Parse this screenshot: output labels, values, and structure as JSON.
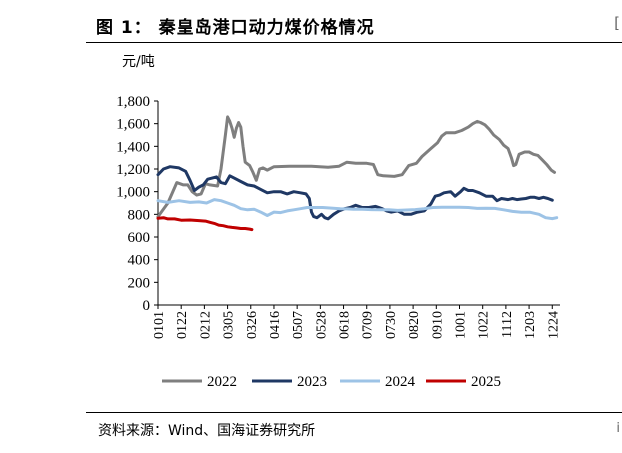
{
  "figure": {
    "title": "图 1：  秦皇岛港口动力煤价格情况",
    "source": "资料来源：Wind、国海证券研究所",
    "edge_mark_top": "[",
    "edge_mark_bottom": "i"
  },
  "chart_data": {
    "type": "line",
    "title": "秦皇岛港口动力煤价格情况",
    "ylabel": "元/吨",
    "xlabel": "",
    "ylim": [
      0,
      1800
    ],
    "yticks": [
      0,
      200,
      400,
      600,
      800,
      1000,
      1200,
      1400,
      1600,
      1800
    ],
    "ytick_labels": [
      "0",
      "200",
      "400",
      "600",
      "800",
      "1,000",
      "1,200",
      "1,400",
      "1,600",
      "1,800"
    ],
    "x_domain": [
      1,
      365
    ],
    "x_ticks": [
      {
        "day": 1,
        "label": "0101"
      },
      {
        "day": 22,
        "label": "0122"
      },
      {
        "day": 43,
        "label": "0212"
      },
      {
        "day": 64,
        "label": "0305"
      },
      {
        "day": 85,
        "label": "0326"
      },
      {
        "day": 106,
        "label": "0416"
      },
      {
        "day": 127,
        "label": "0507"
      },
      {
        "day": 148,
        "label": "0528"
      },
      {
        "day": 169,
        "label": "0618"
      },
      {
        "day": 190,
        "label": "0709"
      },
      {
        "day": 211,
        "label": "0730"
      },
      {
        "day": 232,
        "label": "0820"
      },
      {
        "day": 253,
        "label": "0910"
      },
      {
        "day": 274,
        "label": "1001"
      },
      {
        "day": 295,
        "label": "1022"
      },
      {
        "day": 316,
        "label": "1112"
      },
      {
        "day": 337,
        "label": "1203"
      },
      {
        "day": 358,
        "label": "1224"
      }
    ],
    "legend_position": "bottom",
    "series": [
      {
        "name": "2022",
        "color": "#7f7f7f",
        "points": [
          [
            1,
            780
          ],
          [
            10,
            900
          ],
          [
            18,
            1080
          ],
          [
            24,
            1060
          ],
          [
            28,
            1060
          ],
          [
            32,
            1000
          ],
          [
            36,
            970
          ],
          [
            40,
            980
          ],
          [
            44,
            1070
          ],
          [
            48,
            1060
          ],
          [
            55,
            1050
          ],
          [
            58,
            1200
          ],
          [
            60,
            1350
          ],
          [
            62,
            1500
          ],
          [
            64,
            1660
          ],
          [
            66,
            1620
          ],
          [
            68,
            1560
          ],
          [
            70,
            1480
          ],
          [
            72,
            1560
          ],
          [
            74,
            1610
          ],
          [
            76,
            1570
          ],
          [
            78,
            1400
          ],
          [
            80,
            1260
          ],
          [
            84,
            1230
          ],
          [
            87,
            1170
          ],
          [
            90,
            1100
          ],
          [
            93,
            1200
          ],
          [
            96,
            1210
          ],
          [
            100,
            1190
          ],
          [
            106,
            1220
          ],
          [
            120,
            1225
          ],
          [
            140,
            1225
          ],
          [
            155,
            1215
          ],
          [
            165,
            1225
          ],
          [
            172,
            1260
          ],
          [
            180,
            1250
          ],
          [
            190,
            1250
          ],
          [
            196,
            1240
          ],
          [
            200,
            1150
          ],
          [
            205,
            1140
          ],
          [
            215,
            1135
          ],
          [
            222,
            1150
          ],
          [
            228,
            1230
          ],
          [
            235,
            1250
          ],
          [
            240,
            1310
          ],
          [
            248,
            1380
          ],
          [
            254,
            1430
          ],
          [
            258,
            1490
          ],
          [
            262,
            1520
          ],
          [
            270,
            1520
          ],
          [
            276,
            1540
          ],
          [
            282,
            1570
          ],
          [
            286,
            1600
          ],
          [
            290,
            1620
          ],
          [
            293,
            1610
          ],
          [
            297,
            1590
          ],
          [
            301,
            1550
          ],
          [
            305,
            1500
          ],
          [
            310,
            1460
          ],
          [
            314,
            1410
          ],
          [
            318,
            1380
          ],
          [
            321,
            1300
          ],
          [
            323,
            1230
          ],
          [
            325,
            1240
          ],
          [
            328,
            1330
          ],
          [
            333,
            1350
          ],
          [
            337,
            1350
          ],
          [
            341,
            1330
          ],
          [
            345,
            1320
          ],
          [
            349,
            1280
          ],
          [
            353,
            1240
          ],
          [
            357,
            1190
          ],
          [
            360,
            1170
          ]
        ]
      },
      {
        "name": "2023",
        "color": "#1f3864",
        "points": [
          [
            1,
            1150
          ],
          [
            6,
            1200
          ],
          [
            12,
            1220
          ],
          [
            20,
            1210
          ],
          [
            26,
            1180
          ],
          [
            30,
            1100
          ],
          [
            34,
            1010
          ],
          [
            38,
            1040
          ],
          [
            42,
            1060
          ],
          [
            46,
            1110
          ],
          [
            50,
            1120
          ],
          [
            54,
            1130
          ],
          [
            58,
            1080
          ],
          [
            62,
            1070
          ],
          [
            66,
            1140
          ],
          [
            70,
            1120
          ],
          [
            76,
            1090
          ],
          [
            82,
            1060
          ],
          [
            88,
            1050
          ],
          [
            94,
            1020
          ],
          [
            100,
            990
          ],
          [
            106,
            1000
          ],
          [
            112,
            1000
          ],
          [
            118,
            980
          ],
          [
            124,
            1000
          ],
          [
            130,
            990
          ],
          [
            135,
            980
          ],
          [
            138,
            940
          ],
          [
            140,
            820
          ],
          [
            142,
            780
          ],
          [
            145,
            770
          ],
          [
            149,
            800
          ],
          [
            152,
            770
          ],
          [
            155,
            760
          ],
          [
            160,
            800
          ],
          [
            165,
            830
          ],
          [
            170,
            850
          ],
          [
            175,
            860
          ],
          [
            180,
            880
          ],
          [
            186,
            860
          ],
          [
            192,
            860
          ],
          [
            198,
            870
          ],
          [
            204,
            850
          ],
          [
            208,
            830
          ],
          [
            212,
            820
          ],
          [
            218,
            830
          ],
          [
            224,
            800
          ],
          [
            230,
            800
          ],
          [
            236,
            820
          ],
          [
            242,
            830
          ],
          [
            248,
            890
          ],
          [
            252,
            960
          ],
          [
            256,
            970
          ],
          [
            260,
            990
          ],
          [
            266,
            1000
          ],
          [
            270,
            960
          ],
          [
            275,
            1000
          ],
          [
            278,
            1030
          ],
          [
            282,
            1010
          ],
          [
            286,
            1010
          ],
          [
            292,
            990
          ],
          [
            298,
            960
          ],
          [
            304,
            960
          ],
          [
            308,
            920
          ],
          [
            312,
            940
          ],
          [
            318,
            930
          ],
          [
            322,
            940
          ],
          [
            326,
            930
          ],
          [
            330,
            935
          ],
          [
            334,
            940
          ],
          [
            338,
            950
          ],
          [
            342,
            950
          ],
          [
            346,
            940
          ],
          [
            350,
            950
          ],
          [
            354,
            940
          ],
          [
            358,
            925
          ]
        ]
      },
      {
        "name": "2024",
        "color": "#9dc3e6",
        "points": [
          [
            1,
            920
          ],
          [
            10,
            905
          ],
          [
            20,
            920
          ],
          [
            30,
            905
          ],
          [
            38,
            910
          ],
          [
            45,
            900
          ],
          [
            52,
            930
          ],
          [
            58,
            920
          ],
          [
            64,
            900
          ],
          [
            70,
            880
          ],
          [
            76,
            850
          ],
          [
            82,
            840
          ],
          [
            88,
            845
          ],
          [
            94,
            820
          ],
          [
            100,
            790
          ],
          [
            106,
            820
          ],
          [
            112,
            815
          ],
          [
            118,
            830
          ],
          [
            124,
            840
          ],
          [
            130,
            850
          ],
          [
            136,
            860
          ],
          [
            142,
            860
          ],
          [
            150,
            860
          ],
          [
            158,
            855
          ],
          [
            166,
            850
          ],
          [
            172,
            848
          ],
          [
            178,
            845
          ],
          [
            186,
            845
          ],
          [
            194,
            842
          ],
          [
            202,
            840
          ],
          [
            210,
            840
          ],
          [
            218,
            835
          ],
          [
            226,
            838
          ],
          [
            234,
            842
          ],
          [
            242,
            850
          ],
          [
            250,
            860
          ],
          [
            258,
            862
          ],
          [
            266,
            862
          ],
          [
            274,
            863
          ],
          [
            282,
            860
          ],
          [
            290,
            852
          ],
          [
            298,
            853
          ],
          [
            306,
            852
          ],
          [
            314,
            840
          ],
          [
            322,
            826
          ],
          [
            330,
            818
          ],
          [
            338,
            818
          ],
          [
            346,
            800
          ],
          [
            352,
            770
          ],
          [
            358,
            762
          ],
          [
            362,
            770
          ]
        ]
      },
      {
        "name": "2025",
        "color": "#c00000",
        "points": [
          [
            1,
            765
          ],
          [
            6,
            770
          ],
          [
            10,
            760
          ],
          [
            16,
            760
          ],
          [
            22,
            748
          ],
          [
            30,
            750
          ],
          [
            38,
            745
          ],
          [
            44,
            740
          ],
          [
            48,
            730
          ],
          [
            52,
            720
          ],
          [
            56,
            705
          ],
          [
            60,
            700
          ],
          [
            64,
            690
          ],
          [
            68,
            685
          ],
          [
            72,
            680
          ],
          [
            76,
            675
          ],
          [
            80,
            675
          ],
          [
            84,
            670
          ],
          [
            86,
            665
          ]
        ]
      }
    ]
  }
}
